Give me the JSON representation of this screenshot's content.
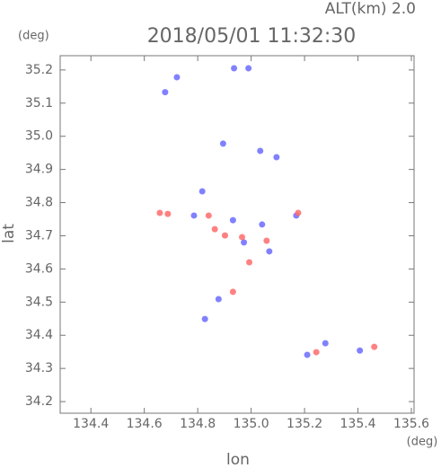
{
  "chart_data": {
    "type": "scatter",
    "alt_label": "ALT(km) 2.0",
    "y_unit": "(deg)",
    "title": "2018/05/01 11:32:30",
    "y_label": "lat",
    "x_label": "lon",
    "x_unit": "(deg)",
    "xlim": [
      134.285,
      135.61
    ],
    "ylim": [
      34.165,
      35.243
    ],
    "xticks": [
      134.4,
      134.6,
      134.8,
      {
        "value": 135.0,
        "label": "135.0"
      },
      135.2,
      135.4,
      135.6
    ],
    "yticks": [
      34.2,
      34.3,
      34.4,
      34.5,
      34.6,
      34.7,
      34.8,
      34.9,
      {
        "value": 35.0,
        "label": "35.0"
      },
      35.1,
      35.2
    ],
    "series": [
      {
        "color": "#6b6bff",
        "x": [
          134.678,
          134.722,
          134.936,
          134.99,
          134.895,
          135.095,
          135.034,
          134.817,
          134.932,
          135.041,
          135.068,
          134.878,
          134.827,
          135.169,
          135.21,
          135.278,
          135.407,
          134.973,
          134.786
        ],
        "values": [
          35.133,
          35.178,
          35.205,
          35.205,
          34.978,
          34.937,
          34.956,
          34.834,
          34.747,
          34.734,
          34.653,
          34.509,
          34.449,
          34.761,
          34.341,
          34.376,
          34.354,
          34.68,
          34.761
        ]
      },
      {
        "color": "#ff6b6b",
        "x": [
          134.658,
          134.864,
          134.841,
          135.244,
          135.461,
          134.966,
          134.993,
          134.932,
          135.176,
          134.688,
          134.902,
          135.058
        ],
        "values": [
          34.769,
          34.72,
          34.761,
          34.349,
          34.365,
          34.696,
          34.62,
          34.531,
          34.769,
          34.766,
          34.701,
          34.685
        ]
      }
    ]
  }
}
